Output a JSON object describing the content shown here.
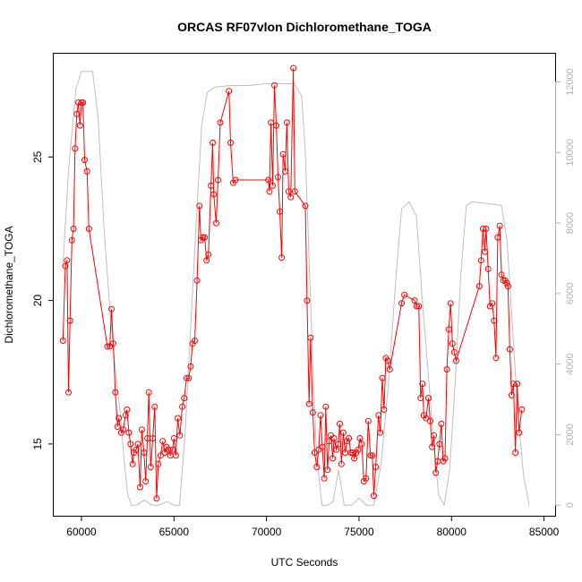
{
  "chart_data": {
    "type": "line",
    "title": "ORCAS RF07vlon Dichloromethane_TOGA",
    "xlabel": "UTC Seconds",
    "ylabel": "Dichloromethane_TOGA",
    "xlim": [
      58500,
      85600
    ],
    "ylim": [
      12.5,
      28.6
    ],
    "y2lim": [
      -300,
      12800
    ],
    "x_ticks": [
      60000,
      65000,
      70000,
      75000,
      80000,
      85000
    ],
    "y_ticks": [
      15,
      20,
      25
    ],
    "y2_ticks": [
      0,
      2000,
      4000,
      6000,
      8000,
      10000,
      12000
    ],
    "colors": {
      "series": "#ff0000",
      "secondary": "#bebebe",
      "axis": "#000000",
      "secondary_axis": "#b0b0b0"
    },
    "series": [
      {
        "color": "#ff0000",
        "style": "line+circles",
        "points": [
          [
            59000,
            18.6
          ],
          [
            59130,
            21.2
          ],
          [
            59220,
            21.4
          ],
          [
            59300,
            16.8
          ],
          [
            59380,
            19.3
          ],
          [
            59480,
            22.1
          ],
          [
            59570,
            22.5
          ],
          [
            59650,
            25.3
          ],
          [
            59750,
            26.5
          ],
          [
            59830,
            26.9
          ],
          [
            59920,
            26.1
          ],
          [
            60000,
            26.9
          ],
          [
            60080,
            26.9
          ],
          [
            60170,
            24.9
          ],
          [
            60300,
            24.5
          ],
          [
            60400,
            22.5
          ],
          [
            61400,
            18.4
          ],
          [
            61530,
            18.4
          ],
          [
            61620,
            19.7
          ],
          [
            61720,
            18.5
          ],
          [
            61830,
            16.8
          ],
          [
            61950,
            15.6
          ],
          [
            62020,
            15.9
          ],
          [
            62150,
            15.4
          ],
          [
            62250,
            15.5
          ],
          [
            62380,
            16.0
          ],
          [
            62460,
            16.2
          ],
          [
            62560,
            15.4
          ],
          [
            62650,
            15.0
          ],
          [
            62770,
            14.3
          ],
          [
            62830,
            14.7
          ],
          [
            62950,
            14.8
          ],
          [
            63050,
            15.0
          ],
          [
            63170,
            13.5
          ],
          [
            63260,
            15.5
          ],
          [
            63380,
            14.7
          ],
          [
            63470,
            13.7
          ],
          [
            63560,
            15.2
          ],
          [
            63640,
            16.8
          ],
          [
            63740,
            14.2
          ],
          [
            63850,
            15.2
          ],
          [
            63960,
            16.3
          ],
          [
            64060,
            13.1
          ],
          [
            64150,
            14.3
          ],
          [
            64280,
            14.6
          ],
          [
            64390,
            15.1
          ],
          [
            64500,
            14.7
          ],
          [
            64600,
            14.9
          ],
          [
            64700,
            14.8
          ],
          [
            64800,
            14.6
          ],
          [
            64920,
            14.8
          ],
          [
            65000,
            15.2
          ],
          [
            65100,
            14.6
          ],
          [
            65200,
            15.9
          ],
          [
            65320,
            15.3
          ],
          [
            65450,
            16.3
          ],
          [
            65550,
            16.6
          ],
          [
            65680,
            17.3
          ],
          [
            65800,
            17.3
          ],
          [
            65900,
            17.7
          ],
          [
            66000,
            18.5
          ],
          [
            66120,
            18.6
          ],
          [
            66250,
            20.7
          ],
          [
            66380,
            23.3
          ],
          [
            66450,
            22.1
          ],
          [
            66560,
            22.2
          ],
          [
            66660,
            22.2
          ],
          [
            66760,
            21.4
          ],
          [
            66860,
            21.6
          ],
          [
            67000,
            24.0
          ],
          [
            67090,
            25.5
          ],
          [
            67150,
            23.7
          ],
          [
            67280,
            22.7
          ],
          [
            67380,
            24.2
          ],
          [
            67500,
            26.2
          ],
          [
            67970,
            27.3
          ],
          [
            68060,
            25.5
          ],
          [
            68200,
            24.1
          ],
          [
            68320,
            24.2
          ],
          [
            70100,
            24.2
          ],
          [
            70160,
            23.8
          ],
          [
            70240,
            26.2
          ],
          [
            70330,
            24.0
          ],
          [
            70430,
            27.5
          ],
          [
            70530,
            26.1
          ],
          [
            70620,
            24.3
          ],
          [
            70720,
            23.1
          ],
          [
            70820,
            21.5
          ],
          [
            70900,
            25.1
          ],
          [
            71010,
            24.5
          ],
          [
            71100,
            26.2
          ],
          [
            71200,
            23.8
          ],
          [
            71310,
            23.6
          ],
          [
            71450,
            28.1
          ],
          [
            71530,
            23.8
          ],
          [
            72100,
            23.3
          ],
          [
            72190,
            20.0
          ],
          [
            72300,
            16.4
          ],
          [
            72380,
            18.7
          ],
          [
            72500,
            16.1
          ],
          [
            72600,
            14.7
          ],
          [
            72720,
            14.2
          ],
          [
            72820,
            14.8
          ],
          [
            72920,
            16.0
          ],
          [
            73020,
            14.9
          ],
          [
            73120,
            13.8
          ],
          [
            73200,
            16.3
          ],
          [
            73300,
            14.1
          ],
          [
            73390,
            15.1
          ],
          [
            73480,
            15.3
          ],
          [
            73580,
            14.5
          ],
          [
            73650,
            15.2
          ],
          [
            73780,
            14.8
          ],
          [
            73880,
            15.0
          ],
          [
            73960,
            15.7
          ],
          [
            74050,
            14.3
          ],
          [
            74150,
            15.4
          ],
          [
            74250,
            14.7
          ],
          [
            74350,
            15.1
          ],
          [
            74450,
            15.2
          ],
          [
            74550,
            14.7
          ],
          [
            74650,
            14.7
          ],
          [
            74740,
            14.5
          ],
          [
            74850,
            14.7
          ],
          [
            74950,
            14.8
          ],
          [
            75050,
            15.2
          ],
          [
            75150,
            15.0
          ],
          [
            75260,
            13.7
          ],
          [
            75380,
            13.8
          ],
          [
            75500,
            15.8
          ],
          [
            75620,
            14.6
          ],
          [
            75720,
            14.6
          ],
          [
            75800,
            13.2
          ],
          [
            75900,
            14.2
          ],
          [
            76050,
            16.0
          ],
          [
            76150,
            15.4
          ],
          [
            76260,
            17.3
          ],
          [
            76350,
            16.2
          ],
          [
            76450,
            18.0
          ],
          [
            76550,
            17.9
          ],
          [
            76660,
            17.6
          ],
          [
            77300,
            19.9
          ],
          [
            77450,
            20.2
          ],
          [
            78000,
            20.0
          ],
          [
            78120,
            19.8
          ],
          [
            78230,
            19.8
          ],
          [
            78330,
            16.6
          ],
          [
            78430,
            17.1
          ],
          [
            78500,
            16.0
          ],
          [
            78620,
            15.9
          ],
          [
            78750,
            16.6
          ],
          [
            78850,
            15.8
          ],
          [
            78950,
            14.9
          ],
          [
            79050,
            15.3
          ],
          [
            79150,
            14.0
          ],
          [
            79250,
            14.4
          ],
          [
            79350,
            15.0
          ],
          [
            79450,
            15.7
          ],
          [
            79550,
            14.4
          ],
          [
            79650,
            14.5
          ],
          [
            79750,
            17.6
          ],
          [
            79850,
            19.0
          ],
          [
            79950,
            19.9
          ],
          [
            80050,
            18.5
          ],
          [
            80150,
            18.2
          ],
          [
            80250,
            17.9
          ],
          [
            81500,
            20.5
          ],
          [
            81600,
            21.4
          ],
          [
            81700,
            22.5
          ],
          [
            81800,
            21.7
          ],
          [
            81870,
            22.5
          ],
          [
            81980,
            21.1
          ],
          [
            82080,
            19.8
          ],
          [
            82200,
            19.9
          ],
          [
            82300,
            19.3
          ],
          [
            82400,
            18.0
          ],
          [
            82500,
            22.2
          ],
          [
            82610,
            22.6
          ],
          [
            82700,
            20.9
          ],
          [
            82800,
            20.7
          ],
          [
            82900,
            20.7
          ],
          [
            82980,
            20.6
          ],
          [
            83050,
            20.5
          ],
          [
            83150,
            18.3
          ],
          [
            83250,
            16.7
          ],
          [
            83350,
            17.1
          ],
          [
            83450,
            14.7
          ],
          [
            83550,
            17.1
          ],
          [
            83650,
            15.4
          ],
          [
            83800,
            16.2
          ]
        ]
      },
      {
        "axis": "right",
        "color": "#bebebe",
        "style": "line",
        "points": [
          [
            59000,
            6800
          ],
          [
            59300,
            9500
          ],
          [
            59700,
            11800
          ],
          [
            60000,
            12300
          ],
          [
            60200,
            12300
          ],
          [
            60600,
            12300
          ],
          [
            60900,
            11000
          ],
          [
            61200,
            8000
          ],
          [
            61500,
            5800
          ],
          [
            61800,
            4000
          ],
          [
            62100,
            2600
          ],
          [
            62300,
            1300
          ],
          [
            62500,
            300
          ],
          [
            62700,
            0
          ],
          [
            63000,
            0
          ],
          [
            63400,
            150
          ],
          [
            63800,
            0
          ],
          [
            64200,
            0
          ],
          [
            64600,
            100
          ],
          [
            65000,
            0
          ],
          [
            65300,
            0
          ],
          [
            65600,
            2000
          ],
          [
            65900,
            5000
          ],
          [
            66200,
            8000
          ],
          [
            66500,
            10800
          ],
          [
            66800,
            11700
          ],
          [
            67200,
            11850
          ],
          [
            68000,
            11900
          ],
          [
            69000,
            11900
          ],
          [
            70000,
            11950
          ],
          [
            71000,
            11950
          ],
          [
            71500,
            11950
          ],
          [
            71900,
            11600
          ],
          [
            72100,
            10000
          ],
          [
            72300,
            7000
          ],
          [
            72500,
            4000
          ],
          [
            72700,
            1500
          ],
          [
            73000,
            0
          ],
          [
            73300,
            0
          ],
          [
            73600,
            100
          ],
          [
            73900,
            1000
          ],
          [
            74200,
            0
          ],
          [
            74600,
            0
          ],
          [
            75000,
            200
          ],
          [
            75400,
            0
          ],
          [
            75800,
            0
          ],
          [
            76200,
            1200
          ],
          [
            76600,
            3500
          ],
          [
            77000,
            6500
          ],
          [
            77300,
            8400
          ],
          [
            77700,
            8600
          ],
          [
            78100,
            8200
          ],
          [
            78400,
            6000
          ],
          [
            78700,
            4000
          ],
          [
            79000,
            2000
          ],
          [
            79300,
            300
          ],
          [
            79600,
            0
          ],
          [
            79900,
            1000
          ],
          [
            80200,
            3500
          ],
          [
            80500,
            6500
          ],
          [
            80800,
            8500
          ],
          [
            81100,
            8600
          ],
          [
            82000,
            8550
          ],
          [
            82700,
            8500
          ],
          [
            83000,
            7500
          ],
          [
            83300,
            5000
          ],
          [
            83600,
            2500
          ],
          [
            83900,
            800
          ],
          [
            84200,
            0
          ]
        ]
      }
    ]
  }
}
